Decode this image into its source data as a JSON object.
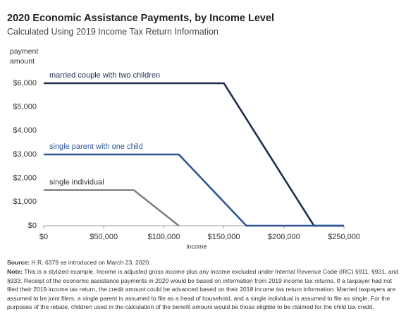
{
  "chart_data": {
    "type": "line",
    "title": "2020 Economic Assistance Payments, by Income Level",
    "subtitle": "Calculated Using 2019 Income Tax Return Information",
    "y_label": "payment amount",
    "x_label": "income",
    "series": [
      {
        "name": "married couple with two children",
        "color": "#1f2e4f",
        "x": [
          0,
          150000,
          225000,
          250000
        ],
        "values": [
          6000,
          6000,
          0,
          0
        ]
      },
      {
        "name": "single parent with one child",
        "color": "#2e5597",
        "x": [
          0,
          112500,
          168750,
          250000
        ],
        "values": [
          3000,
          3000,
          0,
          0
        ]
      },
      {
        "name": "single individual",
        "color": "#7f7f7f",
        "x": [
          0,
          75000,
          112500
        ],
        "values": [
          1500,
          1500,
          0
        ]
      }
    ],
    "xlim": [
      0,
      250000
    ],
    "xticks": [
      {
        "value": 0,
        "label": "$0"
      },
      {
        "value": 50000,
        "label": "$50,000"
      },
      {
        "value": 100000,
        "label": "$100,000"
      },
      {
        "value": 150000,
        "label": "$150,000"
      },
      {
        "value": 200000,
        "label": "$200,000"
      },
      {
        "value": 250000,
        "label": "$250,000"
      }
    ],
    "ylim": [
      0,
      6000
    ],
    "yticks": [
      {
        "value": 0,
        "label": "$0"
      },
      {
        "value": 1000,
        "label": "$1,000"
      },
      {
        "value": 2000,
        "label": "$2,000"
      },
      {
        "value": 3000,
        "label": "$3,000"
      },
      {
        "value": 4000,
        "label": "$4,000"
      },
      {
        "value": 5000,
        "label": "$5,000"
      },
      {
        "value": 6000,
        "label": "$6,000"
      }
    ],
    "grid": false,
    "source_label": "Source:",
    "source": "H.R. 6379 as introduced on March 23, 2020.",
    "note_label": "Note:",
    "note": "This is a stylized example. Income is adjusted gross income plus any income excluded under Internal Revenue Code (IRC) §911, §931, and §933. Receipt of the economic assistance payments in 2020 would be based on information from 2019 income tax returns. If a taxpayer had not filed their 2019 income tax return, the credit amount could be advanced based on their 2018 income tax return information. Married taxpayers are assumed to be joint filers, a single parent is assumed to file as a head of household, and a single individual is assumed to file as single. For the purposes of the rebate, children used in the calculation of the benefit amount would be those eligible to be claimed for the child tax credit."
  }
}
